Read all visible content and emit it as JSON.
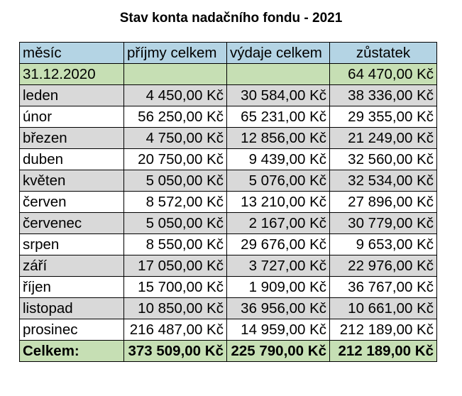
{
  "title": "Stav konta nadačního fondu - 2021",
  "columns": [
    "měsíc",
    "příjmy celkem",
    "výdaje celkem",
    "zůstatek"
  ],
  "start_row": {
    "label": "31.12.2020",
    "income": "",
    "expense": "",
    "balance": "64 470,00 Kč"
  },
  "rows": [
    {
      "month": "leden",
      "income": "4 450,00 Kč",
      "expense": "30 584,00 Kč",
      "balance": "38 336,00 Kč"
    },
    {
      "month": "únor",
      "income": "56 250,00 Kč",
      "expense": "65 231,00 Kč",
      "balance": "29 355,00 Kč"
    },
    {
      "month": "březen",
      "income": "4 750,00 Kč",
      "expense": "12 856,00 Kč",
      "balance": "21 249,00 Kč"
    },
    {
      "month": "duben",
      "income": "20 750,00 Kč",
      "expense": "9 439,00 Kč",
      "balance": "32 560,00 Kč"
    },
    {
      "month": "květen",
      "income": "5 050,00 Kč",
      "expense": "5 076,00 Kč",
      "balance": "32 534,00 Kč"
    },
    {
      "month": "červen",
      "income": "8 572,00 Kč",
      "expense": "13 210,00 Kč",
      "balance": "27 896,00 Kč"
    },
    {
      "month": "červenec",
      "income": "5 050,00 Kč",
      "expense": "2 167,00 Kč",
      "balance": "30 779,00 Kč"
    },
    {
      "month": "srpen",
      "income": "8 550,00 Kč",
      "expense": "29 676,00 Kč",
      "balance": "9 653,00 Kč"
    },
    {
      "month": "září",
      "income": "17 050,00 Kč",
      "expense": "3 727,00 Kč",
      "balance": "22 976,00 Kč"
    },
    {
      "month": "říjen",
      "income": "15 700,00 Kč",
      "expense": "1 909,00 Kč",
      "balance": "36 767,00 Kč"
    },
    {
      "month": "listopad",
      "income": "10 850,00 Kč",
      "expense": "36 956,00 Kč",
      "balance": "10 661,00 Kč"
    },
    {
      "month": "prosinec",
      "income": "216 487,00 Kč",
      "expense": "14 959,00 Kč",
      "balance": "212 189,00 Kč"
    }
  ],
  "total_row": {
    "label": "Celkem:",
    "income": "373 509,00 Kč",
    "expense": "225 790,00 Kč",
    "balance": "212 189,00 Kč"
  },
  "colors": {
    "header_bg": "#b4d4e4",
    "start_total_bg": "#c6dfb4",
    "stripe_bg": "#d9d9d9",
    "plain_bg": "#ffffff"
  }
}
